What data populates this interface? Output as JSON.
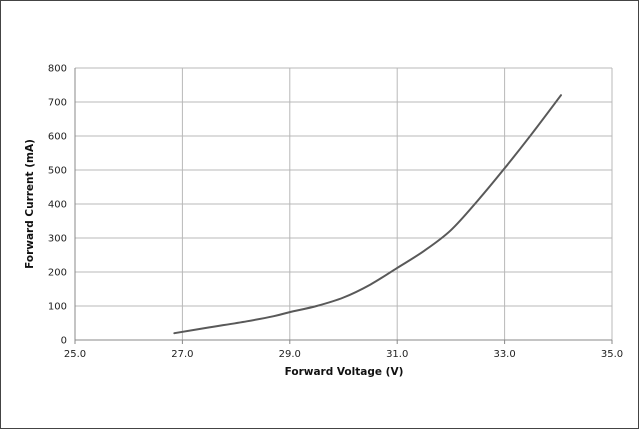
{
  "chart_data": {
    "type": "line",
    "title": "",
    "xlabel": "Forward Voltage (V)",
    "ylabel": "Forward Current (mA)",
    "xlim": [
      25.0,
      35.0
    ],
    "ylim": [
      0,
      800
    ],
    "x_ticks": [
      "25.0",
      "27.0",
      "29.0",
      "31.0",
      "33.0",
      "35.0"
    ],
    "y_ticks": [
      "0",
      "100",
      "200",
      "300",
      "400",
      "500",
      "600",
      "700",
      "800"
    ],
    "grid": true,
    "legend": "none",
    "series": [
      {
        "color": "#595959",
        "points": [
          {
            "x": 26.85,
            "y": 20
          },
          {
            "x": 27.5,
            "y": 37
          },
          {
            "x": 28.2,
            "y": 55
          },
          {
            "x": 28.7,
            "y": 70
          },
          {
            "x": 29.0,
            "y": 82
          },
          {
            "x": 29.5,
            "y": 100
          },
          {
            "x": 30.0,
            "y": 125
          },
          {
            "x": 30.5,
            "y": 163
          },
          {
            "x": 31.0,
            "y": 212
          },
          {
            "x": 31.5,
            "y": 262
          },
          {
            "x": 32.0,
            "y": 323
          },
          {
            "x": 32.5,
            "y": 410
          },
          {
            "x": 33.0,
            "y": 505
          },
          {
            "x": 33.5,
            "y": 605
          },
          {
            "x": 34.05,
            "y": 720
          }
        ]
      }
    ]
  }
}
